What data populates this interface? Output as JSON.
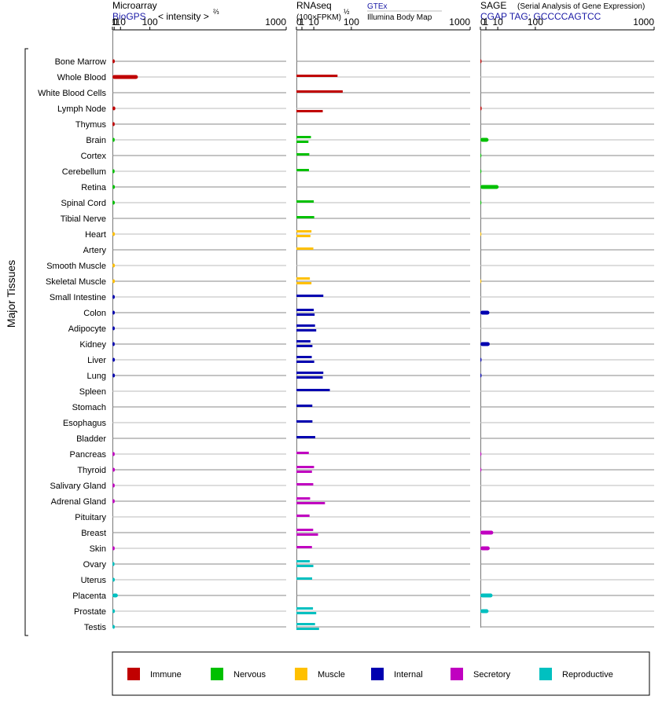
{
  "headers": {
    "microarray": {
      "title": "Microarray",
      "source": "BioGPS",
      "measure": "< intensity >",
      "measure_sup": "⅔"
    },
    "rnaseq": {
      "title": "RNAseq",
      "measure": "(100×FPKM)",
      "measure_sup": "½",
      "source1": "GTEx",
      "source2": "Illumina Body Map"
    },
    "sage": {
      "title": "SAGE",
      "subtitle": "(Serial Analysis of Gene Expression)",
      "tag": "CGAP TAG: GCCCCAGTCC"
    }
  },
  "ylabel": "Major Tissues",
  "tick_labels": [
    "0",
    "1",
    "10",
    "100",
    "1000"
  ],
  "colors": {
    "Immune": "#c00000",
    "Nervous": "#00c000",
    "Muscle": "#ffc000",
    "Internal": "#0000b0",
    "Secretory": "#c000c0",
    "Reproductive": "#00c0c0"
  },
  "legend": [
    "Immune",
    "Nervous",
    "Muscle",
    "Internal",
    "Secretory",
    "Reproductive"
  ],
  "chart_data": {
    "type": "bar",
    "orientation": "horizontal",
    "scale": "power",
    "xlim": [
      0,
      1000
    ],
    "xticks": [
      0,
      1,
      10,
      100,
      1000
    ],
    "categories": [
      "Bone Marrow",
      "Whole Blood",
      "White Blood Cells",
      "Lymph Node",
      "Thymus",
      "Brain",
      "Cortex",
      "Cerebellum",
      "Retina",
      "Spinal Cord",
      "Tibial Nerve",
      "Heart",
      "Artery",
      "Smooth Muscle",
      "Skeletal Muscle",
      "Small Intestine",
      "Colon",
      "Adipocyte",
      "Kidney",
      "Liver",
      "Lung",
      "Spleen",
      "Stomach",
      "Esophagus",
      "Bladder",
      "Pancreas",
      "Thyroid",
      "Salivary Gland",
      "Adrenal Gland",
      "Pituitary",
      "Breast",
      "Skin",
      "Ovary",
      "Uterus",
      "Placenta",
      "Prostate",
      "Testis"
    ],
    "groups": [
      "Immune",
      "Immune",
      "Immune",
      "Immune",
      "Immune",
      "Nervous",
      "Nervous",
      "Nervous",
      "Nervous",
      "Nervous",
      "Nervous",
      "Muscle",
      "Muscle",
      "Muscle",
      "Muscle",
      "Internal",
      "Internal",
      "Internal",
      "Internal",
      "Internal",
      "Internal",
      "Internal",
      "Internal",
      "Internal",
      "Internal",
      "Secretory",
      "Secretory",
      "Secretory",
      "Secretory",
      "Secretory",
      "Secretory",
      "Secretory",
      "Reproductive",
      "Reproductive",
      "Reproductive",
      "Reproductive",
      "Reproductive"
    ],
    "microarray": [
      1.6,
      56,
      null,
      2.2,
      1.5,
      1.5,
      null,
      1.4,
      1.7,
      1.6,
      null,
      1.7,
      null,
      1.7,
      1.7,
      1.6,
      1.6,
      1.6,
      1.5,
      1.7,
      1.7,
      null,
      null,
      null,
      null,
      1.5,
      1.7,
      1.5,
      1.5,
      null,
      null,
      1.5,
      1.3,
      1.6,
      5.5,
      1.7,
      1.6
    ],
    "rnaseq_gtex": [
      null,
      56,
      71,
      null,
      null,
      7,
      5.5,
      5.2,
      null,
      10,
      10.5,
      7.5,
      9.5,
      null,
      6,
      24,
      10,
      11.5,
      6.5,
      7.8,
      24,
      37,
      8.4,
      8.5,
      11.7,
      5.1,
      10.3,
      9.4,
      6.2,
      5.7,
      9.3,
      8,
      5.9,
      8.2,
      null,
      9.1,
      11.5
    ],
    "rnaseq_ibm": [
      null,
      null,
      null,
      23,
      null,
      4.8,
      null,
      null,
      null,
      null,
      null,
      6.5,
      null,
      null,
      7.5,
      null,
      11,
      13,
      8.5,
      10.5,
      23,
      null,
      null,
      null,
      null,
      null,
      8,
      null,
      27,
      null,
      15.5,
      null,
      9.5,
      null,
      null,
      13,
      17
    ],
    "sage": [
      0.04,
      null,
      null,
      0.05,
      null,
      2.2,
      0.02,
      0.02,
      11,
      0.03,
      null,
      0.01,
      null,
      null,
      0.01,
      null,
      2.7,
      null,
      2.9,
      0.04,
      0.04,
      null,
      null,
      null,
      null,
      0.03,
      0.03,
      null,
      null,
      null,
      5.5,
      2.9,
      null,
      null,
      4.9,
      2.2,
      null
    ]
  }
}
